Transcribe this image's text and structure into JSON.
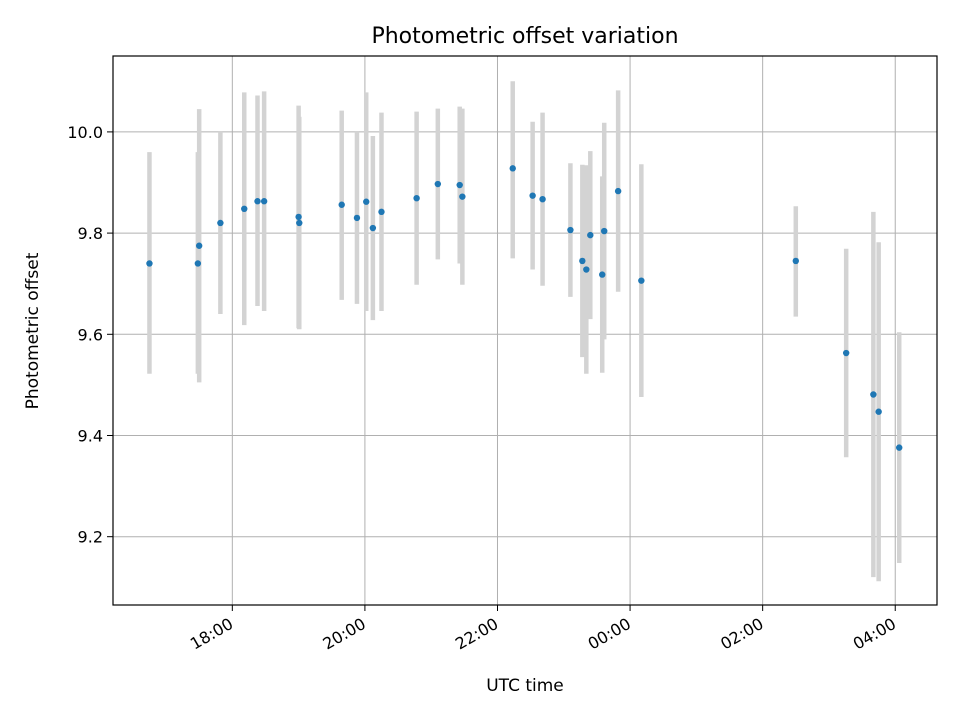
{
  "chart_data": {
    "type": "scatter",
    "title": "Photometric offset variation",
    "xlabel": "UTC time",
    "ylabel": "Photometric offset",
    "xlim_hours": [
      16.2,
      28.63
    ],
    "ylim": [
      9.065,
      10.15
    ],
    "grid": true,
    "x_ticks": [
      {
        "hour": 18,
        "label": "18:00"
      },
      {
        "hour": 20,
        "label": "20:00"
      },
      {
        "hour": 22,
        "label": "22:00"
      },
      {
        "hour": 24,
        "label": "00:00"
      },
      {
        "hour": 26,
        "label": "02:00"
      },
      {
        "hour": 28,
        "label": "04:00"
      }
    ],
    "y_ticks": [
      {
        "value": 9.2,
        "label": "9.2"
      },
      {
        "value": 9.4,
        "label": "9.4"
      },
      {
        "value": 9.6,
        "label": "9.6"
      },
      {
        "value": 9.8,
        "label": "9.8"
      },
      {
        "value": 10.0,
        "label": "10.0"
      }
    ],
    "colors": {
      "point": "#1f77b4",
      "errorbar": "#d3d3d3",
      "grid": "#b0b0b0"
    },
    "points": [
      {
        "time": "16:45",
        "hour": 16.75,
        "y": 9.74,
        "lo": 9.522,
        "hi": 9.96
      },
      {
        "time": "17:29",
        "hour": 17.48,
        "y": 9.74,
        "lo": 9.522,
        "hi": 9.96
      },
      {
        "time": "17:30",
        "hour": 17.5,
        "y": 9.775,
        "lo": 9.505,
        "hi": 10.045
      },
      {
        "time": "17:49",
        "hour": 17.82,
        "y": 9.82,
        "lo": 9.64,
        "hi": 10.0
      },
      {
        "time": "18:11",
        "hour": 18.18,
        "y": 9.848,
        "lo": 9.618,
        "hi": 10.078
      },
      {
        "time": "18:23",
        "hour": 18.38,
        "y": 9.863,
        "lo": 9.656,
        "hi": 10.072
      },
      {
        "time": "18:29",
        "hour": 18.48,
        "y": 9.863,
        "lo": 9.646,
        "hi": 10.08
      },
      {
        "time": "19:00",
        "hour": 19.0,
        "y": 9.832,
        "lo": 9.612,
        "hi": 10.052
      },
      {
        "time": "19:01",
        "hour": 19.01,
        "y": 9.82,
        "lo": 9.61,
        "hi": 10.03
      },
      {
        "time": "19:39",
        "hour": 19.65,
        "y": 9.856,
        "lo": 9.668,
        "hi": 10.042
      },
      {
        "time": "19:53",
        "hour": 19.88,
        "y": 9.83,
        "lo": 9.66,
        "hi": 10.0
      },
      {
        "time": "20:01",
        "hour": 20.02,
        "y": 9.862,
        "lo": 9.646,
        "hi": 10.078
      },
      {
        "time": "20:07",
        "hour": 20.12,
        "y": 9.81,
        "lo": 9.628,
        "hi": 9.992
      },
      {
        "time": "20:15",
        "hour": 20.25,
        "y": 9.842,
        "lo": 9.646,
        "hi": 10.038
      },
      {
        "time": "20:47",
        "hour": 20.78,
        "y": 9.869,
        "lo": 9.698,
        "hi": 10.04
      },
      {
        "time": "21:06",
        "hour": 21.1,
        "y": 9.897,
        "lo": 9.748,
        "hi": 10.046
      },
      {
        "time": "21:26",
        "hour": 21.43,
        "y": 9.895,
        "lo": 9.74,
        "hi": 10.05
      },
      {
        "time": "21:28",
        "hour": 21.47,
        "y": 9.872,
        "lo": 9.698,
        "hi": 10.046
      },
      {
        "time": "22:14",
        "hour": 22.23,
        "y": 9.928,
        "lo": 9.75,
        "hi": 10.1
      },
      {
        "time": "22:32",
        "hour": 22.53,
        "y": 9.874,
        "lo": 9.728,
        "hi": 10.02
      },
      {
        "time": "22:41",
        "hour": 22.68,
        "y": 9.867,
        "lo": 9.696,
        "hi": 10.038
      },
      {
        "time": "23:06",
        "hour": 23.1,
        "y": 9.806,
        "lo": 9.674,
        "hi": 9.938
      },
      {
        "time": "23:17",
        "hour": 23.28,
        "y": 9.745,
        "lo": 9.555,
        "hi": 9.935
      },
      {
        "time": "23:20",
        "hour": 23.34,
        "y": 9.728,
        "lo": 9.522,
        "hi": 9.934
      },
      {
        "time": "23:24",
        "hour": 23.4,
        "y": 9.796,
        "lo": 9.63,
        "hi": 9.962
      },
      {
        "time": "23:35",
        "hour": 23.58,
        "y": 9.718,
        "lo": 9.524,
        "hi": 9.912
      },
      {
        "time": "23:37",
        "hour": 23.61,
        "y": 9.804,
        "lo": 9.59,
        "hi": 10.018
      },
      {
        "time": "23:49",
        "hour": 23.82,
        "y": 9.883,
        "lo": 9.684,
        "hi": 10.082
      },
      {
        "time": "00:10",
        "hour": 24.17,
        "y": 9.706,
        "lo": 9.476,
        "hi": 9.936
      },
      {
        "time": "02:30",
        "hour": 26.5,
        "y": 9.745,
        "lo": 9.635,
        "hi": 9.853
      },
      {
        "time": "03:16",
        "hour": 27.26,
        "y": 9.563,
        "lo": 9.357,
        "hi": 9.769
      },
      {
        "time": "03:40",
        "hour": 27.67,
        "y": 9.481,
        "lo": 9.12,
        "hi": 9.842
      },
      {
        "time": "03:45",
        "hour": 27.75,
        "y": 9.447,
        "lo": 9.112,
        "hi": 9.782
      },
      {
        "time": "04:04",
        "hour": 28.06,
        "y": 9.376,
        "lo": 9.148,
        "hi": 9.604
      }
    ]
  }
}
